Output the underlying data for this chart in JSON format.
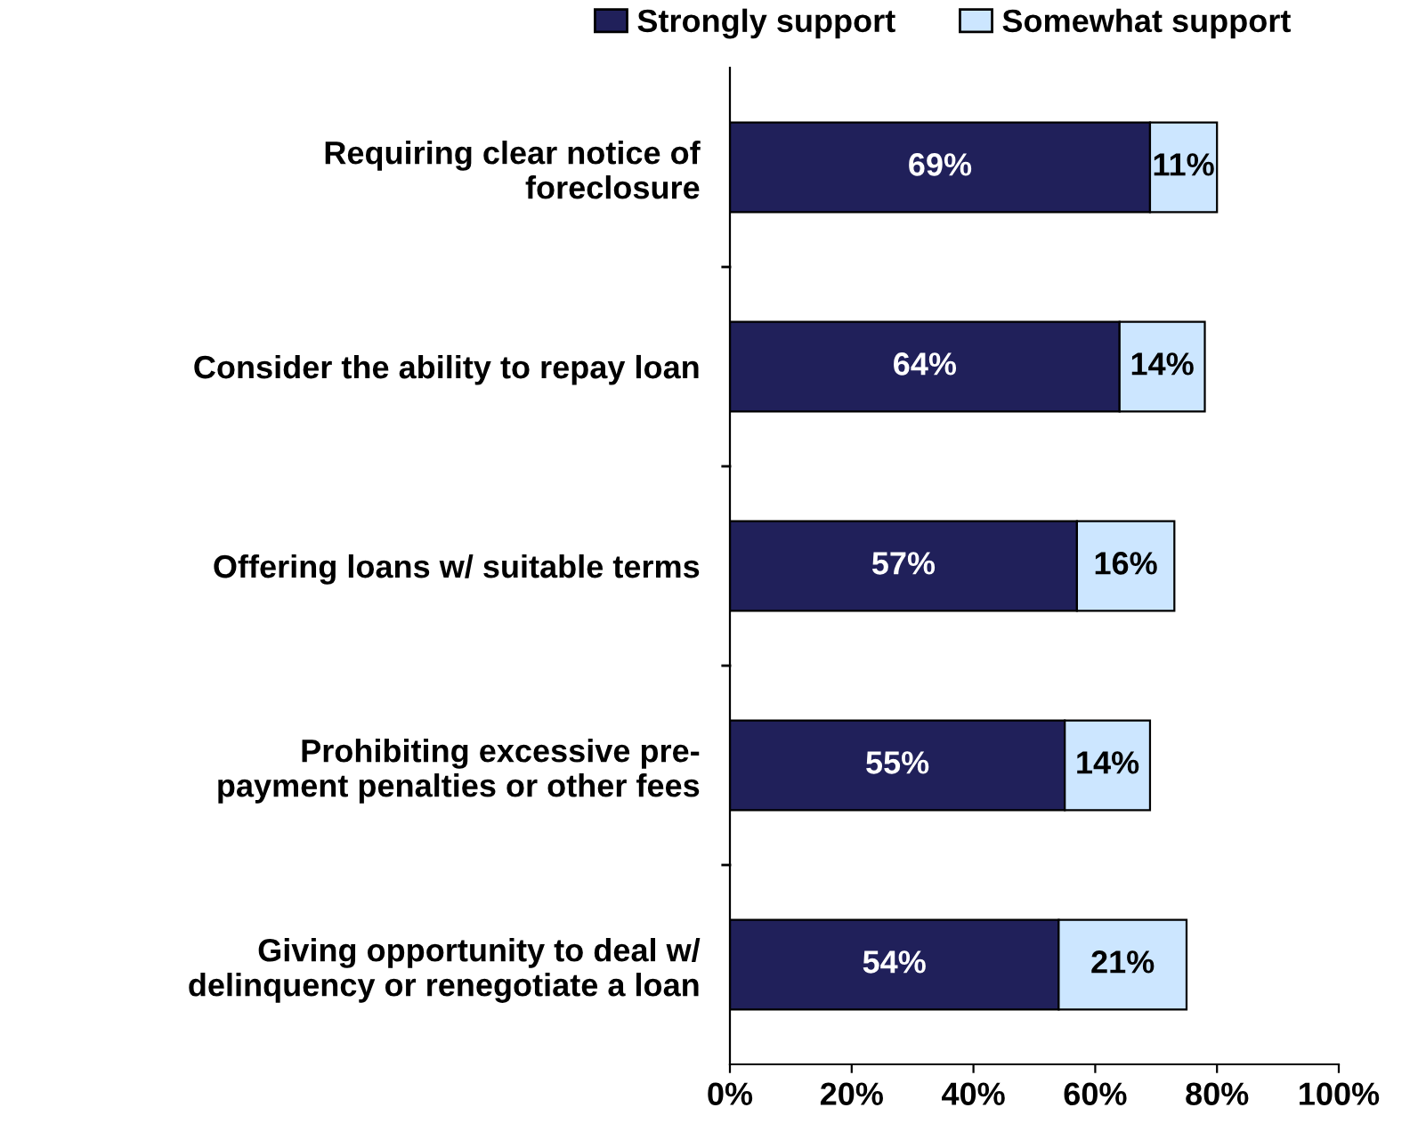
{
  "chart_data": {
    "type": "bar",
    "orientation": "horizontal",
    "stacked": true,
    "legend": "top",
    "categories": [
      "Requiring clear notice of\nforeclosure",
      "Consider the ability to repay loan",
      "Offering loans w/ suitable terms",
      "Prohibiting excessive pre-\npayment penalties or other fees",
      "Giving opportunity to deal w/\ndelinquency or renegotiate a loan"
    ],
    "series": [
      {
        "name": "Strongly support",
        "color": "#20205a",
        "values": [
          69,
          64,
          57,
          55,
          54
        ],
        "value_labels": [
          "69%",
          "64%",
          "57%",
          "55%",
          "54%"
        ]
      },
      {
        "name": "Somewhat support",
        "color": "#cce6ff",
        "values": [
          11,
          14,
          16,
          14,
          21
        ],
        "value_labels": [
          "11%",
          "14%",
          "16%",
          "14%",
          "21%"
        ]
      }
    ],
    "xlim": [
      0,
      100
    ],
    "xticks": [
      {
        "value": 0,
        "label": "0%"
      },
      {
        "value": 20,
        "label": "20%"
      },
      {
        "value": 40,
        "label": "40%"
      },
      {
        "value": 60,
        "label": "60%"
      },
      {
        "value": 80,
        "label": "80%"
      },
      {
        "value": 100,
        "label": "100%"
      }
    ],
    "grid": false
  }
}
